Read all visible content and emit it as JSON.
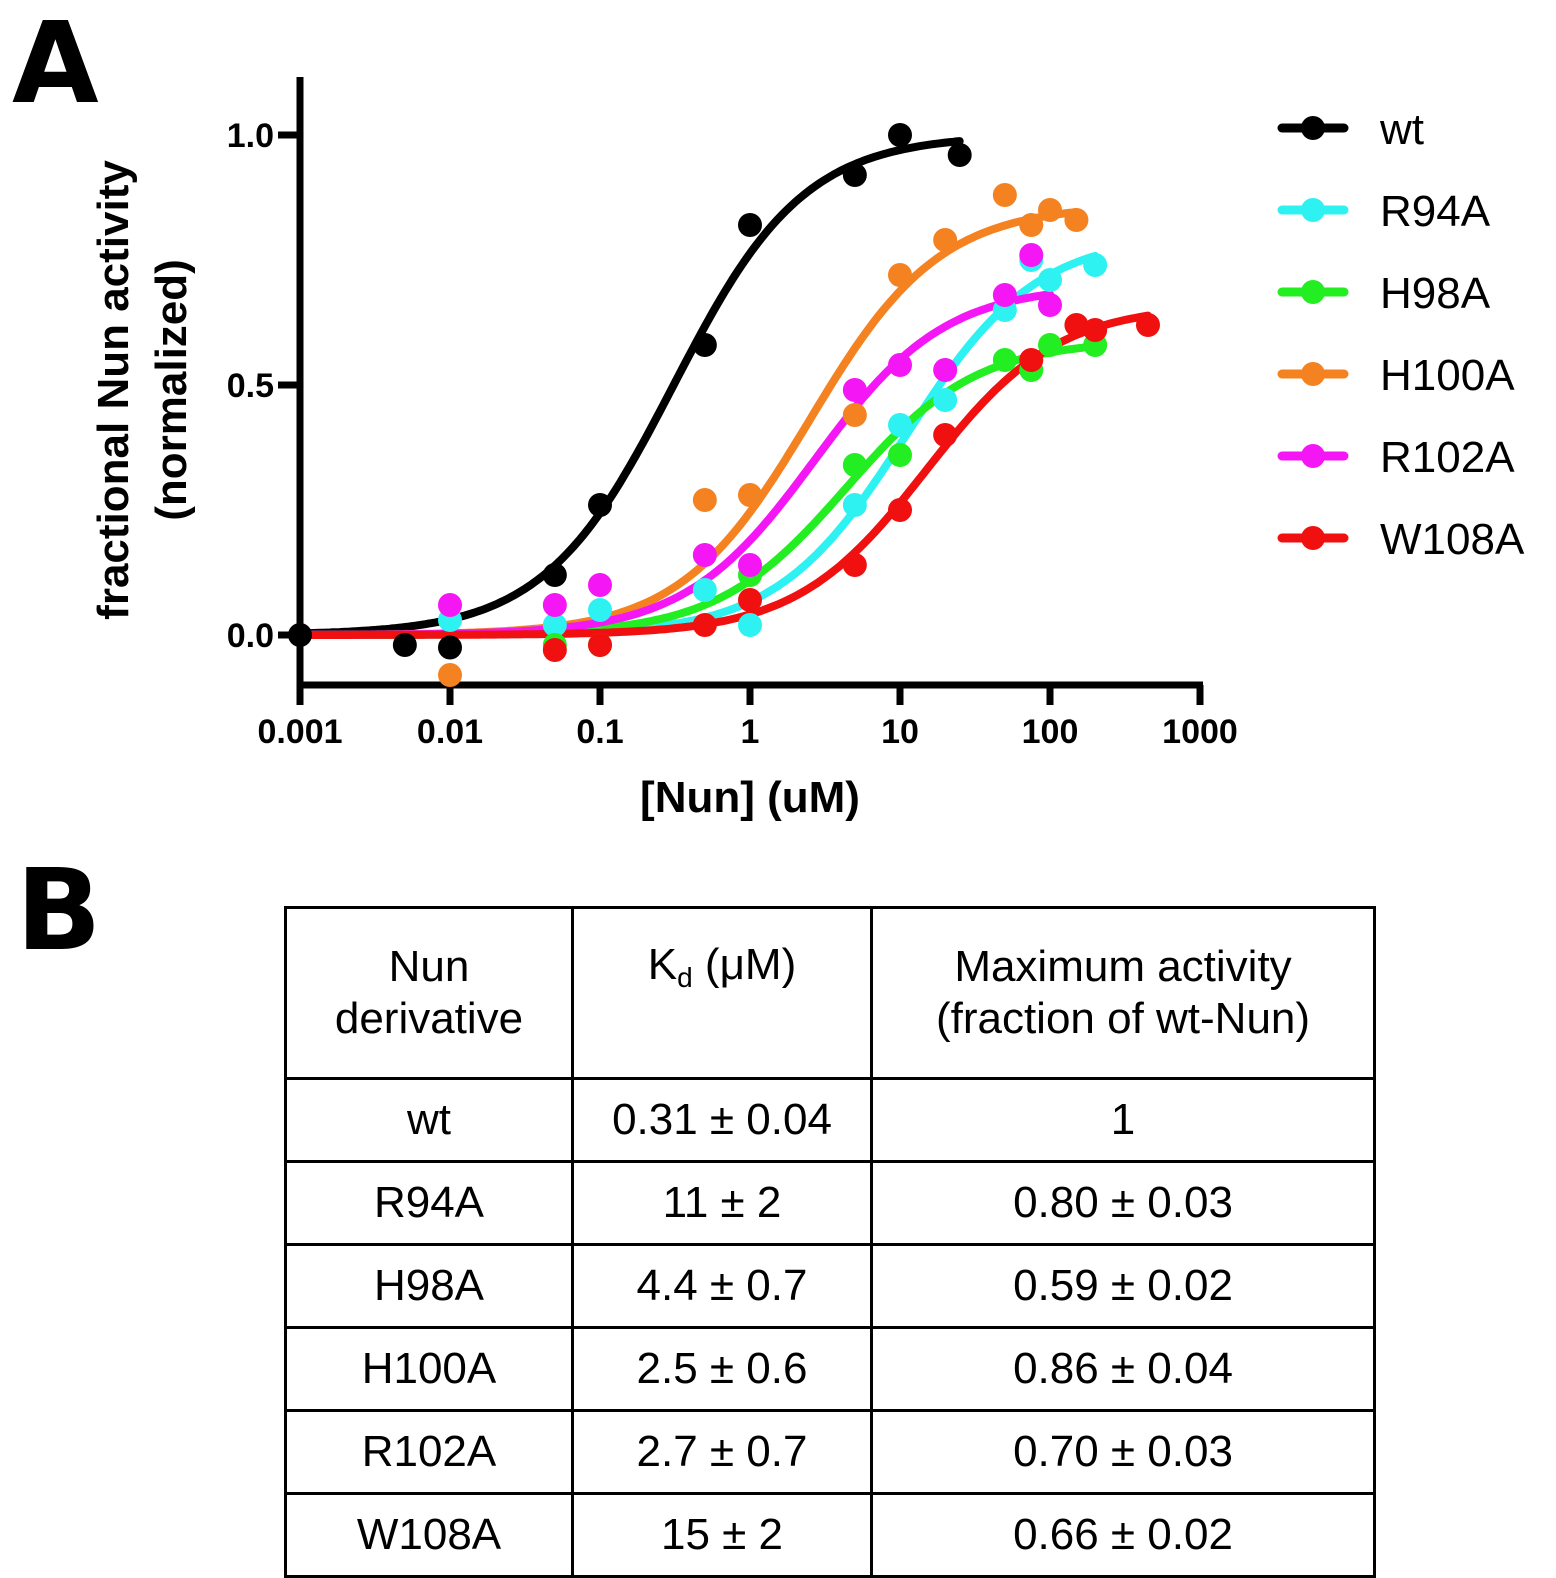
{
  "panels": {
    "a": "A",
    "b": "B"
  },
  "chart_data": {
    "type": "scatter",
    "title": "",
    "xlabel": "[Nun] (uM)",
    "ylabel": "fractional Nun activity",
    "ylabel2": "(normalized)",
    "xscale": "log",
    "xlim": [
      0.001,
      1000
    ],
    "ylim": [
      -0.1,
      1.1
    ],
    "xticks": [
      0.001,
      0.01,
      0.1,
      1,
      10,
      100,
      1000
    ],
    "xtick_labels": [
      "0.001",
      "0.01",
      "0.1",
      "1",
      "10",
      "100",
      "1000"
    ],
    "yticks": [
      0.0,
      0.5,
      1.0
    ],
    "ytick_labels": [
      "0.0",
      "0.5",
      "1.0"
    ],
    "grid": false,
    "legend_position": "right",
    "series": [
      {
        "name": "wt",
        "color": "#000000",
        "kd": 0.31,
        "max": 1.0,
        "fit_xmax": 25,
        "points": [
          [
            0.001,
            0.0
          ],
          [
            0.005,
            -0.02
          ],
          [
            0.01,
            -0.025
          ],
          [
            0.05,
            0.12
          ],
          [
            0.1,
            0.26
          ],
          [
            0.5,
            0.58
          ],
          [
            1,
            0.82
          ],
          [
            5,
            0.92
          ],
          [
            10,
            1.0
          ],
          [
            25,
            0.96
          ]
        ]
      },
      {
        "name": "R94A",
        "color": "#2ef2f2",
        "kd": 11,
        "max": 0.8,
        "fit_xmax": 200,
        "points": [
          [
            0.01,
            0.03
          ],
          [
            0.05,
            0.02
          ],
          [
            0.1,
            0.05
          ],
          [
            0.5,
            0.09
          ],
          [
            1,
            0.02
          ],
          [
            5,
            0.26
          ],
          [
            10,
            0.42
          ],
          [
            20,
            0.47
          ],
          [
            50,
            0.65
          ],
          [
            75,
            0.75
          ],
          [
            100,
            0.71
          ],
          [
            200,
            0.74
          ]
        ]
      },
      {
        "name": "H98A",
        "color": "#22ee22",
        "kd": 4.4,
        "max": 0.59,
        "fit_xmax": 200,
        "points": [
          [
            0.05,
            -0.02
          ],
          [
            0.1,
            -0.02
          ],
          [
            1,
            0.12
          ],
          [
            5,
            0.34
          ],
          [
            10,
            0.36
          ],
          [
            50,
            0.55
          ],
          [
            75,
            0.53
          ],
          [
            100,
            0.58
          ],
          [
            200,
            0.58
          ]
        ]
      },
      {
        "name": "H100A",
        "color": "#f58220",
        "kd": 2.5,
        "max": 0.86,
        "fit_xmax": 150,
        "points": [
          [
            0.01,
            -0.08
          ],
          [
            0.5,
            0.27
          ],
          [
            1,
            0.28
          ],
          [
            5,
            0.44
          ],
          [
            10,
            0.72
          ],
          [
            20,
            0.79
          ],
          [
            50,
            0.88
          ],
          [
            75,
            0.82
          ],
          [
            100,
            0.85
          ],
          [
            150,
            0.83
          ]
        ]
      },
      {
        "name": "R102A",
        "color": "#f516f5",
        "kd": 2.7,
        "max": 0.7,
        "fit_xmax": 100,
        "points": [
          [
            0.01,
            0.06
          ],
          [
            0.05,
            0.06
          ],
          [
            0.1,
            0.1
          ],
          [
            0.5,
            0.16
          ],
          [
            1,
            0.14
          ],
          [
            5,
            0.49
          ],
          [
            10,
            0.54
          ],
          [
            20,
            0.53
          ],
          [
            50,
            0.68
          ],
          [
            75,
            0.76
          ],
          [
            100,
            0.66
          ]
        ]
      },
      {
        "name": "W108A",
        "color": "#f01010",
        "kd": 15,
        "max": 0.66,
        "fit_xmax": 450,
        "points": [
          [
            0.05,
            -0.03
          ],
          [
            0.1,
            -0.02
          ],
          [
            0.5,
            0.02
          ],
          [
            1,
            0.07
          ],
          [
            5,
            0.14
          ],
          [
            10,
            0.25
          ],
          [
            20,
            0.4
          ],
          [
            75,
            0.55
          ],
          [
            150,
            0.62
          ],
          [
            200,
            0.61
          ],
          [
            450,
            0.62
          ]
        ]
      }
    ]
  },
  "table": {
    "headers": [
      {
        "line1": "Nun",
        "line2": "derivative"
      },
      {
        "main": "K",
        "sub": "d",
        "rest": " (μM)"
      },
      {
        "line1": "Maximum activity",
        "line2": "(fraction of wt-Nun)"
      }
    ],
    "rows": [
      [
        "wt",
        "0.31 ± 0.04",
        "1"
      ],
      [
        "R94A",
        "11 ± 2",
        "0.80 ± 0.03"
      ],
      [
        "H98A",
        "4.4 ± 0.7",
        "0.59 ± 0.02"
      ],
      [
        "H100A",
        "2.5 ± 0.6",
        "0.86 ± 0.04"
      ],
      [
        "R102A",
        "2.7 ± 0.7",
        "0.70 ± 0.03"
      ],
      [
        "W108A",
        "15 ± 2",
        "0.66 ± 0.02"
      ]
    ]
  }
}
